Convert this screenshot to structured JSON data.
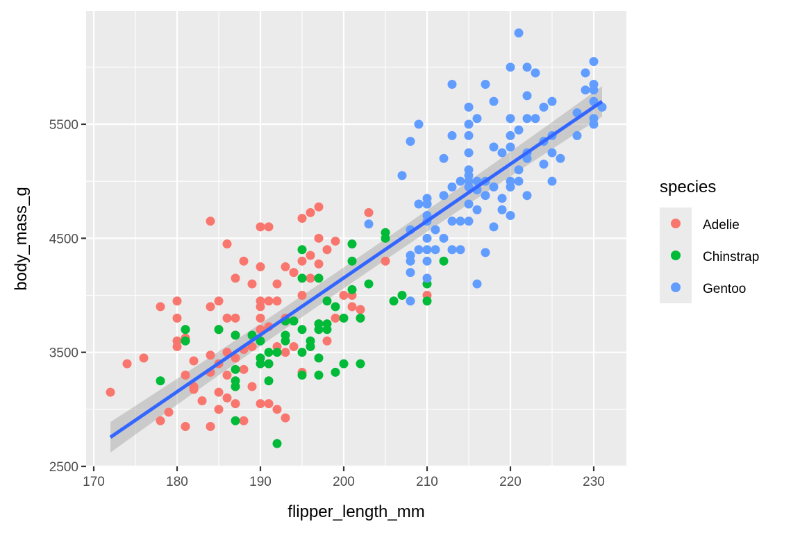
{
  "chart_data": {
    "type": "scatter",
    "title": "",
    "xlabel": "flipper_length_mm",
    "ylabel": "body_mass_g",
    "xlim": [
      169,
      233
    ],
    "ylim": [
      2500,
      6500
    ],
    "x_ticks": [
      170,
      180,
      190,
      200,
      210,
      220,
      230
    ],
    "y_ticks": [
      2500,
      3500,
      4500,
      5500
    ],
    "grid": true,
    "legend": {
      "title": "species",
      "position": "right"
    },
    "trend_line": {
      "method": "lm",
      "se": true,
      "color": "#3366FF",
      "from": [
        172,
        2755
      ],
      "to": [
        231,
        5700
      ]
    },
    "series": [
      {
        "name": "Adelie",
        "color": "#F8766D",
        "points": [
          [
            172,
            3150
          ],
          [
            174,
            3400
          ],
          [
            176,
            3450
          ],
          [
            178,
            3900
          ],
          [
            178,
            2900
          ],
          [
            179,
            2975
          ],
          [
            180,
            3950
          ],
          [
            180,
            3800
          ],
          [
            180,
            3600
          ],
          [
            180,
            3550
          ],
          [
            181,
            3700
          ],
          [
            181,
            3625
          ],
          [
            181,
            3300
          ],
          [
            181,
            2850
          ],
          [
            182,
            3425
          ],
          [
            182,
            3200
          ],
          [
            182,
            3175
          ],
          [
            183,
            3075
          ],
          [
            184,
            3900
          ],
          [
            184,
            4650
          ],
          [
            184,
            3475
          ],
          [
            184,
            3325
          ],
          [
            184,
            2850
          ],
          [
            185,
            3950
          ],
          [
            185,
            3700
          ],
          [
            185,
            3400
          ],
          [
            185,
            3150
          ],
          [
            185,
            3000
          ],
          [
            186,
            4450
          ],
          [
            186,
            3800
          ],
          [
            186,
            3500
          ],
          [
            186,
            3300
          ],
          [
            186,
            3100
          ],
          [
            187,
            4150
          ],
          [
            187,
            3800
          ],
          [
            187,
            3650
          ],
          [
            187,
            3450
          ],
          [
            187,
            3200
          ],
          [
            187,
            3050
          ],
          [
            188,
            4300
          ],
          [
            188,
            3525
          ],
          [
            188,
            3350
          ],
          [
            188,
            2900
          ],
          [
            189,
            4100
          ],
          [
            189,
            3550
          ],
          [
            189,
            3200
          ],
          [
            190,
            4600
          ],
          [
            190,
            4250
          ],
          [
            190,
            3950
          ],
          [
            190,
            3900
          ],
          [
            190,
            3800
          ],
          [
            190,
            3700
          ],
          [
            190,
            3450
          ],
          [
            190,
            3050
          ],
          [
            191,
            4600
          ],
          [
            191,
            3950
          ],
          [
            191,
            3725
          ],
          [
            191,
            3400
          ],
          [
            191,
            3050
          ],
          [
            192,
            4100
          ],
          [
            192,
            3950
          ],
          [
            192,
            3550
          ],
          [
            192,
            3000
          ],
          [
            193,
            4250
          ],
          [
            193,
            3800
          ],
          [
            193,
            3500
          ],
          [
            193,
            2925
          ],
          [
            194,
            4200
          ],
          [
            194,
            3550
          ],
          [
            195,
            4675
          ],
          [
            195,
            4300
          ],
          [
            195,
            4000
          ],
          [
            195,
            3325
          ],
          [
            196,
            4725
          ],
          [
            196,
            4350
          ],
          [
            196,
            4150
          ],
          [
            196,
            3550
          ],
          [
            197,
            4775
          ],
          [
            197,
            4500
          ],
          [
            197,
            4275
          ],
          [
            197,
            3750
          ],
          [
            198,
            4400
          ],
          [
            198,
            3600
          ],
          [
            199,
            4475
          ],
          [
            199,
            3800
          ],
          [
            200,
            4000
          ],
          [
            201,
            4000
          ],
          [
            201,
            3900
          ],
          [
            202,
            3875
          ],
          [
            203,
            4725
          ],
          [
            205,
            4300
          ],
          [
            210,
            4000
          ]
        ]
      },
      {
        "name": "Chinstrap",
        "color": "#00BA38",
        "points": [
          [
            178,
            3250
          ],
          [
            181,
            3700
          ],
          [
            181,
            3600
          ],
          [
            185,
            3700
          ],
          [
            187,
            3650
          ],
          [
            187,
            3350
          ],
          [
            187,
            3250
          ],
          [
            187,
            3200
          ],
          [
            187,
            2900
          ],
          [
            189,
            3650
          ],
          [
            190,
            3600
          ],
          [
            190,
            3450
          ],
          [
            190,
            3400
          ],
          [
            191,
            3500
          ],
          [
            191,
            3400
          ],
          [
            191,
            3250
          ],
          [
            192,
            3500
          ],
          [
            192,
            2700
          ],
          [
            193,
            3775
          ],
          [
            193,
            3650
          ],
          [
            193,
            3600
          ],
          [
            194,
            3775
          ],
          [
            195,
            4400
          ],
          [
            195,
            4150
          ],
          [
            195,
            3700
          ],
          [
            195,
            3500
          ],
          [
            195,
            3300
          ],
          [
            196,
            3550
          ],
          [
            196,
            3600
          ],
          [
            197,
            4150
          ],
          [
            197,
            3750
          ],
          [
            197,
            3700
          ],
          [
            197,
            3450
          ],
          [
            197,
            3300
          ],
          [
            198,
            3950
          ],
          [
            198,
            3750
          ],
          [
            198,
            3700
          ],
          [
            199,
            3900
          ],
          [
            199,
            3325
          ],
          [
            200,
            3800
          ],
          [
            200,
            3400
          ],
          [
            201,
            4450
          ],
          [
            201,
            4300
          ],
          [
            201,
            4050
          ],
          [
            202,
            3800
          ],
          [
            202,
            3400
          ],
          [
            203,
            4100
          ],
          [
            205,
            4550
          ],
          [
            205,
            4500
          ],
          [
            206,
            3950
          ],
          [
            207,
            4000
          ],
          [
            210,
            4800
          ],
          [
            210,
            4100
          ],
          [
            210,
            3950
          ],
          [
            212,
            4300
          ]
        ]
      },
      {
        "name": "Gentoo",
        "color": "#619CFF",
        "points": [
          [
            203,
            4625
          ],
          [
            207,
            5050
          ],
          [
            208,
            5350
          ],
          [
            208,
            4575
          ],
          [
            208,
            4350
          ],
          [
            208,
            4300
          ],
          [
            208,
            4200
          ],
          [
            208,
            3950
          ],
          [
            209,
            5500
          ],
          [
            209,
            4800
          ],
          [
            209,
            4400
          ],
          [
            210,
            4850
          ],
          [
            210,
            4800
          ],
          [
            210,
            4700
          ],
          [
            210,
            4650
          ],
          [
            210,
            4500
          ],
          [
            210,
            4400
          ],
          [
            210,
            4300
          ],
          [
            210,
            4150
          ],
          [
            211,
            4575
          ],
          [
            211,
            4400
          ],
          [
            212,
            4500
          ],
          [
            212,
            4875
          ],
          [
            212,
            5200
          ],
          [
            213,
            5850
          ],
          [
            213,
            5400
          ],
          [
            213,
            4950
          ],
          [
            213,
            4650
          ],
          [
            213,
            4400
          ],
          [
            214,
            5000
          ],
          [
            214,
            4650
          ],
          [
            214,
            4400
          ],
          [
            215,
            5650
          ],
          [
            215,
            5500
          ],
          [
            215,
            5400
          ],
          [
            215,
            5250
          ],
          [
            215,
            5100
          ],
          [
            215,
            5050
          ],
          [
            215,
            5000
          ],
          [
            215,
            4950
          ],
          [
            215,
            4800
          ],
          [
            215,
            4650
          ],
          [
            216,
            5550
          ],
          [
            216,
            5000
          ],
          [
            216,
            4925
          ],
          [
            216,
            4750
          ],
          [
            216,
            4100
          ],
          [
            217,
            5850
          ],
          [
            217,
            5000
          ],
          [
            217,
            4875
          ],
          [
            217,
            4375
          ],
          [
            218,
            5700
          ],
          [
            218,
            5300
          ],
          [
            218,
            4950
          ],
          [
            218,
            4600
          ],
          [
            219,
            5250
          ],
          [
            219,
            4850
          ],
          [
            219,
            4750
          ],
          [
            220,
            6000
          ],
          [
            220,
            5550
          ],
          [
            220,
            5400
          ],
          [
            220,
            5300
          ],
          [
            220,
            5000
          ],
          [
            220,
            4950
          ],
          [
            220,
            4700
          ],
          [
            221,
            6300
          ],
          [
            221,
            5450
          ],
          [
            221,
            5100
          ],
          [
            221,
            5000
          ],
          [
            222,
            6000
          ],
          [
            222,
            5750
          ],
          [
            222,
            5550
          ],
          [
            222,
            5250
          ],
          [
            222,
            5200
          ],
          [
            222,
            4875
          ],
          [
            223,
            5950
          ],
          [
            223,
            5550
          ],
          [
            224,
            5650
          ],
          [
            224,
            5350
          ],
          [
            224,
            5150
          ],
          [
            225,
            5700
          ],
          [
            225,
            5400
          ],
          [
            225,
            5250
          ],
          [
            225,
            5000
          ],
          [
            226,
            5200
          ],
          [
            228,
            5600
          ],
          [
            228,
            5400
          ],
          [
            229,
            5950
          ],
          [
            229,
            5800
          ],
          [
            230,
            6050
          ],
          [
            230,
            5850
          ],
          [
            230,
            5800
          ],
          [
            230,
            5700
          ],
          [
            230,
            5550
          ],
          [
            230,
            5500
          ],
          [
            231,
            5650
          ]
        ]
      }
    ]
  },
  "legend": {
    "title": "species",
    "items": [
      {
        "label": "Adelie",
        "color": "#F8766D"
      },
      {
        "label": "Chinstrap",
        "color": "#00BA38"
      },
      {
        "label": "Gentoo",
        "color": "#619CFF"
      }
    ]
  },
  "axes": {
    "x_title": "flipper_length_mm",
    "y_title": "body_mass_g",
    "x_tick_labels": [
      "170",
      "180",
      "190",
      "200",
      "210",
      "220",
      "230"
    ],
    "y_tick_labels": [
      "2500",
      "3500",
      "4500",
      "5500"
    ]
  }
}
